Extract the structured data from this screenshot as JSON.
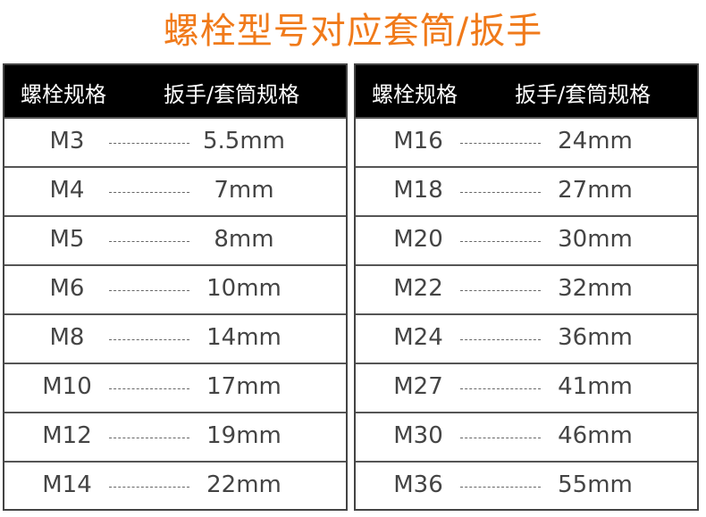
{
  "title": "螺栓型号对应套筒/扳手",
  "headers": {
    "bolt": "螺栓规格",
    "wrench": "扳手/套筒规格"
  },
  "left": [
    {
      "bolt": "M3",
      "size": "5.5mm"
    },
    {
      "bolt": "M4",
      "size": "7mm"
    },
    {
      "bolt": "M5",
      "size": "8mm"
    },
    {
      "bolt": "M6",
      "size": "10mm"
    },
    {
      "bolt": "M8",
      "size": "14mm"
    },
    {
      "bolt": "M10",
      "size": "17mm"
    },
    {
      "bolt": "M12",
      "size": "19mm"
    },
    {
      "bolt": "M14",
      "size": "22mm"
    }
  ],
  "right": [
    {
      "bolt": "M16",
      "size": "24mm"
    },
    {
      "bolt": "M18",
      "size": "27mm"
    },
    {
      "bolt": "M20",
      "size": "30mm"
    },
    {
      "bolt": "M22",
      "size": "32mm"
    },
    {
      "bolt": "M24",
      "size": "36mm"
    },
    {
      "bolt": "M27",
      "size": "41mm"
    },
    {
      "bolt": "M30",
      "size": "46mm"
    },
    {
      "bolt": "M36",
      "size": "55mm"
    }
  ],
  "colors": {
    "title": "#f07a1a",
    "header_bg": "#000000"
  }
}
